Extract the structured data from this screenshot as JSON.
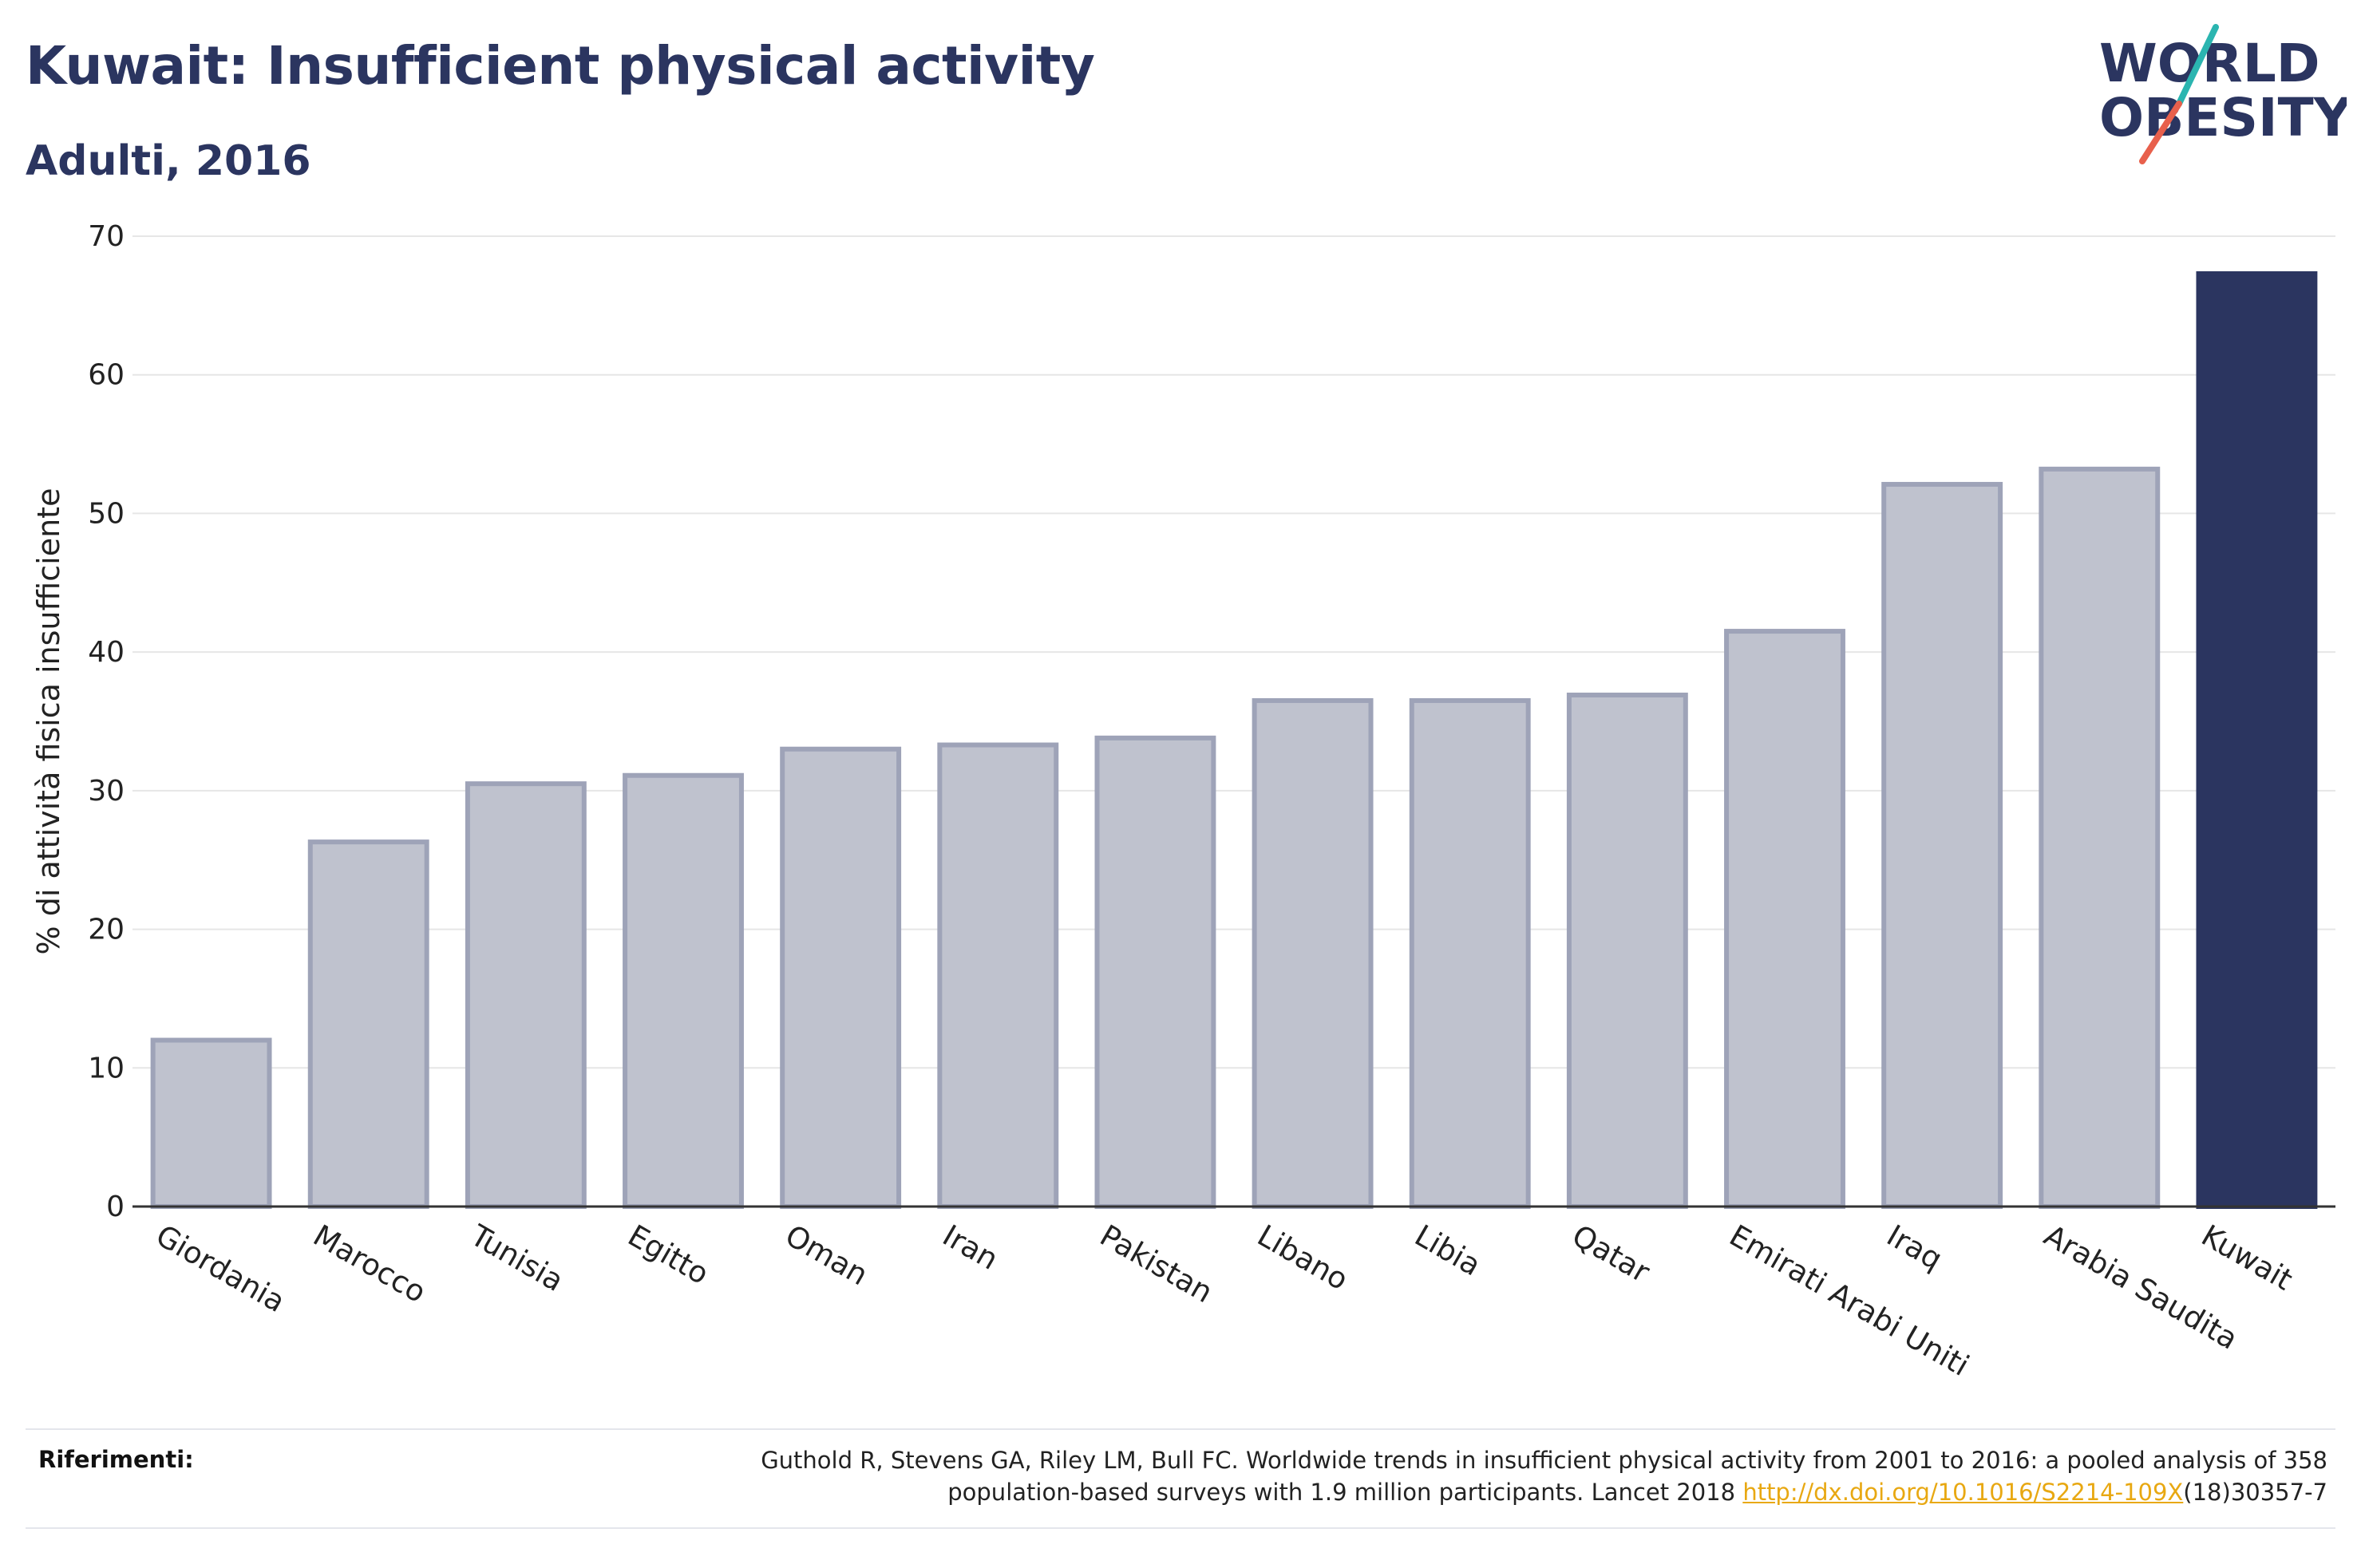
{
  "header": {
    "title": "Kuwait: Insufficient physical activity",
    "subtitle": "Adulti, 2016"
  },
  "logo": {
    "line1": "WORLD",
    "line2": "OBESITY",
    "slash_top_color": "#2bb5b0",
    "slash_bottom_color": "#e8604c"
  },
  "references": {
    "label": "Riferimenti:",
    "text_line1": "Guthold R, Stevens GA, Riley LM, Bull FC. Worldwide trends in insufficient physical activity from 2001 to 2016: a pooled analysis of 358",
    "text_line2_pre": "population-based surveys with 1.9 million participants. Lancet 2018 ",
    "link": "http://dx.doi.org/10.1016/S2214-109X",
    "text_line2_post": "(18)30357-7"
  },
  "chart_data": {
    "type": "bar",
    "title": "",
    "xlabel": "",
    "ylabel": "% di attività fisica insufficiente",
    "ylim": [
      0,
      70
    ],
    "yticks": [
      0,
      10,
      20,
      30,
      40,
      50,
      60,
      70
    ],
    "grid": true,
    "categories": [
      "Giordania",
      "Marocco",
      "Tunisia",
      "Egitto",
      "Oman",
      "Iran",
      "Pakistan",
      "Libano",
      "Libia",
      "Qatar",
      "Emirati Arabi Uniti",
      "Iraq",
      "Arabia Saudita",
      "Kuwait"
    ],
    "values": [
      12.0,
      26.3,
      30.5,
      31.1,
      33.0,
      33.3,
      33.8,
      36.5,
      36.5,
      36.9,
      41.5,
      52.1,
      53.2,
      67.3
    ],
    "highlight": "Kuwait",
    "colors": {
      "bar": "#bfc2ce",
      "bar_border": "#9ea3b8",
      "highlight": "#2b3560",
      "grid": "#e6e6e6",
      "axis": "#333333"
    }
  }
}
